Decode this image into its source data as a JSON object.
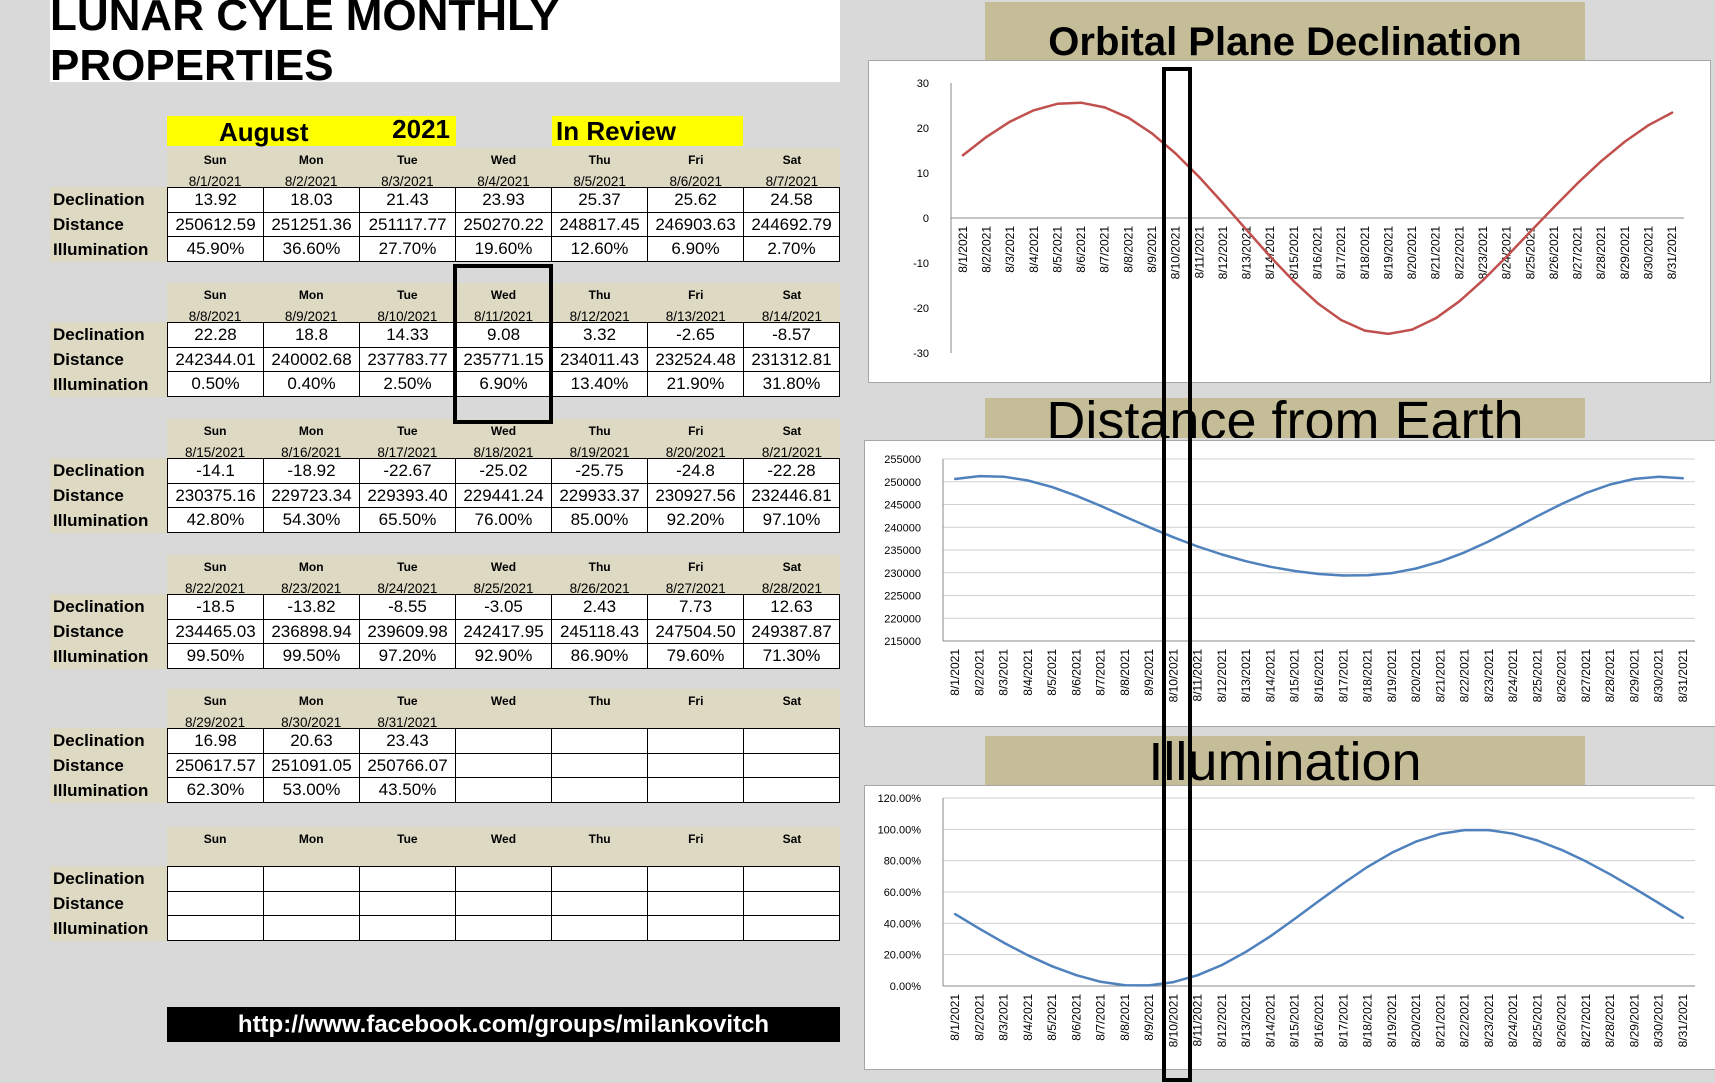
{
  "title": "LUNAR CYLE MONTHLY PROPERTIES",
  "month": "August",
  "year": "2021",
  "review_label": "In Review",
  "row_labels": [
    "Declination",
    "Distance",
    "Illumination"
  ],
  "url": "http://www.facebook.com/groups/milankovitch",
  "weeks": [
    {
      "days": [
        "Sun",
        "Mon",
        "Tue",
        "Wed",
        "Thu",
        "Fri",
        "Sat"
      ],
      "dates": [
        "8/1/2021",
        "8/2/2021",
        "8/3/2021",
        "8/4/2021",
        "8/5/2021",
        "8/6/2021",
        "8/7/2021"
      ],
      "declination": [
        "13.92",
        "18.03",
        "21.43",
        "23.93",
        "25.37",
        "25.62",
        "24.58"
      ],
      "distance": [
        "250612.59",
        "251251.36",
        "251117.77",
        "250270.22",
        "248817.45",
        "246903.63",
        "244692.79"
      ],
      "illumination": [
        "45.90%",
        "36.60%",
        "27.70%",
        "19.60%",
        "12.60%",
        "6.90%",
        "2.70%"
      ]
    },
    {
      "days": [
        "Sun",
        "Mon",
        "Tue",
        "Wed",
        "Thu",
        "Fri",
        "Sat"
      ],
      "dates": [
        "8/8/2021",
        "8/9/2021",
        "8/10/2021",
        "8/11/2021",
        "8/12/2021",
        "8/13/2021",
        "8/14/2021"
      ],
      "declination": [
        "22.28",
        "18.8",
        "14.33",
        "9.08",
        "3.32",
        "-2.65",
        "-8.57"
      ],
      "distance": [
        "242344.01",
        "240002.68",
        "237783.77",
        "235771.15",
        "234011.43",
        "232524.48",
        "231312.81"
      ],
      "illumination": [
        "0.50%",
        "0.40%",
        "2.50%",
        "6.90%",
        "13.40%",
        "21.90%",
        "31.80%"
      ]
    },
    {
      "days": [
        "Sun",
        "Mon",
        "Tue",
        "Wed",
        "Thu",
        "Fri",
        "Sat"
      ],
      "dates": [
        "8/15/2021",
        "8/16/2021",
        "8/17/2021",
        "8/18/2021",
        "8/19/2021",
        "8/20/2021",
        "8/21/2021"
      ],
      "declination": [
        "-14.1",
        "-18.92",
        "-22.67",
        "-25.02",
        "-25.75",
        "-24.8",
        "-22.28"
      ],
      "distance": [
        "230375.16",
        "229723.34",
        "229393.40",
        "229441.24",
        "229933.37",
        "230927.56",
        "232446.81"
      ],
      "illumination": [
        "42.80%",
        "54.30%",
        "65.50%",
        "76.00%",
        "85.00%",
        "92.20%",
        "97.10%"
      ]
    },
    {
      "days": [
        "Sun",
        "Mon",
        "Tue",
        "Wed",
        "Thu",
        "Fri",
        "Sat"
      ],
      "dates": [
        "8/22/2021",
        "8/23/2021",
        "8/24/2021",
        "8/25/2021",
        "8/26/2021",
        "8/27/2021",
        "8/28/2021"
      ],
      "declination": [
        "-18.5",
        "-13.82",
        "-8.55",
        "-3.05",
        "2.43",
        "7.73",
        "12.63"
      ],
      "distance": [
        "234465.03",
        "236898.94",
        "239609.98",
        "242417.95",
        "245118.43",
        "247504.50",
        "249387.87"
      ],
      "illumination": [
        "99.50%",
        "99.50%",
        "97.20%",
        "92.90%",
        "86.90%",
        "79.60%",
        "71.30%"
      ]
    },
    {
      "days": [
        "Sun",
        "Mon",
        "Tue",
        "Wed",
        "Thu",
        "Fri",
        "Sat"
      ],
      "dates": [
        "8/29/2021",
        "8/30/2021",
        "8/31/2021",
        "",
        "",
        "",
        ""
      ],
      "declination": [
        "16.98",
        "20.63",
        "23.43",
        "",
        "",
        "",
        ""
      ],
      "distance": [
        "250617.57",
        "251091.05",
        "250766.07",
        "",
        "",
        "",
        ""
      ],
      "illumination": [
        "62.30%",
        "53.00%",
        "43.50%",
        "",
        "",
        "",
        ""
      ]
    },
    {
      "days": [
        "Sun",
        "Mon",
        "Tue",
        "Wed",
        "Thu",
        "Fri",
        "Sat"
      ],
      "dates": [
        "",
        "",
        "",
        "",
        "",
        "",
        ""
      ],
      "declination": [
        "",
        "",
        "",
        "",
        "",
        "",
        ""
      ],
      "distance": [
        "",
        "",
        "",
        "",
        "",
        "",
        ""
      ],
      "illumination": [
        "",
        "",
        "",
        "",
        "",
        "",
        ""
      ]
    }
  ],
  "chart_data": [
    {
      "type": "line",
      "title": "Orbital Plane Declination",
      "x": [
        "8/1/2021",
        "8/2/2021",
        "8/3/2021",
        "8/4/2021",
        "8/5/2021",
        "8/6/2021",
        "8/7/2021",
        "8/8/2021",
        "8/9/2021",
        "8/10/2021",
        "8/11/2021",
        "8/12/2021",
        "8/13/2021",
        "8/14/2021",
        "8/15/2021",
        "8/16/2021",
        "8/17/2021",
        "8/18/2021",
        "8/19/2021",
        "8/20/2021",
        "8/21/2021",
        "8/22/2021",
        "8/23/2021",
        "8/24/2021",
        "8/25/2021",
        "8/26/2021",
        "8/27/2021",
        "8/28/2021",
        "8/29/2021",
        "8/30/2021",
        "8/31/2021"
      ],
      "values": [
        13.92,
        18.03,
        21.43,
        23.93,
        25.37,
        25.62,
        24.58,
        22.28,
        18.8,
        14.33,
        9.08,
        3.32,
        -2.65,
        -8.57,
        -14.1,
        -18.92,
        -22.67,
        -25.02,
        -25.75,
        -24.8,
        -22.28,
        -18.5,
        -13.82,
        -8.55,
        -3.05,
        2.43,
        7.73,
        12.63,
        16.98,
        20.63,
        23.43
      ],
      "ylim": [
        -30,
        30
      ],
      "yticks": [
        "30",
        "20",
        "10",
        "0",
        "-10",
        "-20",
        "-30"
      ],
      "color": "#c0504d",
      "grid": false
    },
    {
      "type": "line",
      "title": "Distance from Earth",
      "x": [
        "8/1/2021",
        "8/2/2021",
        "8/3/2021",
        "8/4/2021",
        "8/5/2021",
        "8/6/2021",
        "8/7/2021",
        "8/8/2021",
        "8/9/2021",
        "8/10/2021",
        "8/11/2021",
        "8/12/2021",
        "8/13/2021",
        "8/14/2021",
        "8/15/2021",
        "8/16/2021",
        "8/17/2021",
        "8/18/2021",
        "8/19/2021",
        "8/20/2021",
        "8/21/2021",
        "8/22/2021",
        "8/23/2021",
        "8/24/2021",
        "8/25/2021",
        "8/26/2021",
        "8/27/2021",
        "8/28/2021",
        "8/29/2021",
        "8/30/2021",
        "8/31/2021"
      ],
      "values": [
        250612.59,
        251251.36,
        251117.77,
        250270.22,
        248817.45,
        246903.63,
        244692.79,
        242344.01,
        240002.68,
        237783.77,
        235771.15,
        234011.43,
        232524.48,
        231312.81,
        230375.16,
        229723.34,
        229393.4,
        229441.24,
        229933.37,
        230927.56,
        232446.81,
        234465.03,
        236898.94,
        239609.98,
        242417.95,
        245118.43,
        247504.5,
        249387.87,
        250617.57,
        251091.05,
        250766.07
      ],
      "ylim": [
        215000,
        255000
      ],
      "yticks": [
        "255000",
        "250000",
        "245000",
        "240000",
        "235000",
        "230000",
        "225000",
        "220000",
        "215000"
      ],
      "color": "#4f81bd",
      "grid": true
    },
    {
      "type": "line",
      "title": "Illumination",
      "x": [
        "8/1/2021",
        "8/2/2021",
        "8/3/2021",
        "8/4/2021",
        "8/5/2021",
        "8/6/2021",
        "8/7/2021",
        "8/8/2021",
        "8/9/2021",
        "8/10/2021",
        "8/11/2021",
        "8/12/2021",
        "8/13/2021",
        "8/14/2021",
        "8/15/2021",
        "8/16/2021",
        "8/17/2021",
        "8/18/2021",
        "8/19/2021",
        "8/20/2021",
        "8/21/2021",
        "8/22/2021",
        "8/23/2021",
        "8/24/2021",
        "8/25/2021",
        "8/26/2021",
        "8/27/2021",
        "8/28/2021",
        "8/29/2021",
        "8/30/2021",
        "8/31/2021"
      ],
      "values": [
        45.9,
        36.6,
        27.7,
        19.6,
        12.6,
        6.9,
        2.7,
        0.5,
        0.4,
        2.5,
        6.9,
        13.4,
        21.9,
        31.8,
        42.8,
        54.3,
        65.5,
        76.0,
        85.0,
        92.2,
        97.1,
        99.5,
        99.5,
        97.2,
        92.9,
        86.9,
        79.6,
        71.3,
        62.3,
        53.0,
        43.5
      ],
      "ylim": [
        0,
        120
      ],
      "yticks": [
        "120.00%",
        "100.00%",
        "80.00%",
        "60.00%",
        "40.00%",
        "20.00%",
        "0.00%"
      ],
      "color": "#4f81bd",
      "grid": true
    }
  ]
}
